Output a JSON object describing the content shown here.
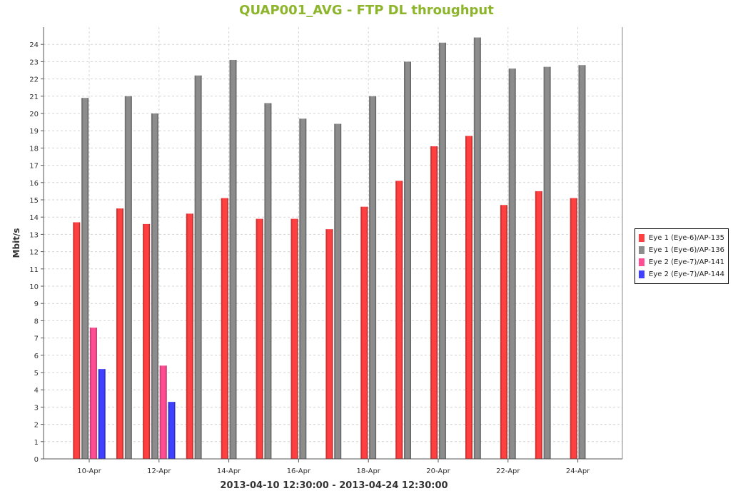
{
  "chart_data": {
    "type": "bar",
    "title": "QUAP001_AVG - FTP DL throughput",
    "xlabel": "2013-04-10 12:30:00 - 2013-04-24 12:30:00",
    "ylabel": "Mbit/s",
    "ylim": [
      0,
      25
    ],
    "yticks": [
      0,
      1,
      2,
      3,
      4,
      5,
      6,
      7,
      8,
      9,
      10,
      11,
      12,
      13,
      14,
      15,
      16,
      17,
      18,
      19,
      20,
      21,
      22,
      23,
      24
    ],
    "x_tick_labels": [
      {
        "label": "10-Apr",
        "day": 10
      },
      {
        "label": "12-Apr",
        "day": 12
      },
      {
        "label": "14-Apr",
        "day": 14
      },
      {
        "label": "16-Apr",
        "day": 16
      },
      {
        "label": "18-Apr",
        "day": 18
      },
      {
        "label": "20-Apr",
        "day": 20
      },
      {
        "label": "22-Apr",
        "day": 22
      },
      {
        "label": "24-Apr",
        "day": 24
      }
    ],
    "grid": true,
    "legend_position": "right",
    "dates": [
      "2013-04-10",
      "2013-04-11",
      "2013-04-12",
      "2013-04-13",
      "2013-04-14",
      "2013-04-15",
      "2013-04-16",
      "2013-04-17",
      "2013-04-18",
      "2013-04-19",
      "2013-04-20",
      "2013-04-21",
      "2013-04-22",
      "2013-04-23",
      "2013-04-24"
    ],
    "series": [
      {
        "name": "Eye 1 (Eye-6)/AP-135",
        "color": "#ff4040",
        "values": [
          13.7,
          14.5,
          13.6,
          14.2,
          15.1,
          13.9,
          13.9,
          13.3,
          14.6,
          16.1,
          18.1,
          18.7,
          14.7,
          15.5,
          15.1
        ]
      },
      {
        "name": "Eye 1 (Eye-6)/AP-136",
        "color": "#8c8c8c",
        "values": [
          20.9,
          21.0,
          20.0,
          22.2,
          23.1,
          20.6,
          19.7,
          19.4,
          21.0,
          23.0,
          24.1,
          24.4,
          22.6,
          22.7,
          22.8
        ]
      },
      {
        "name": "Eye 2 (Eye-7)/AP-141",
        "color": "#ff4d94",
        "values": [
          7.6,
          null,
          5.4,
          null,
          null,
          null,
          null,
          null,
          null,
          null,
          null,
          null,
          null,
          null,
          null
        ]
      },
      {
        "name": "Eye 2 (Eye-7)/AP-144",
        "color": "#4040ff",
        "values": [
          5.2,
          null,
          3.3,
          null,
          null,
          null,
          null,
          null,
          null,
          null,
          null,
          null,
          null,
          null,
          null
        ]
      }
    ]
  }
}
